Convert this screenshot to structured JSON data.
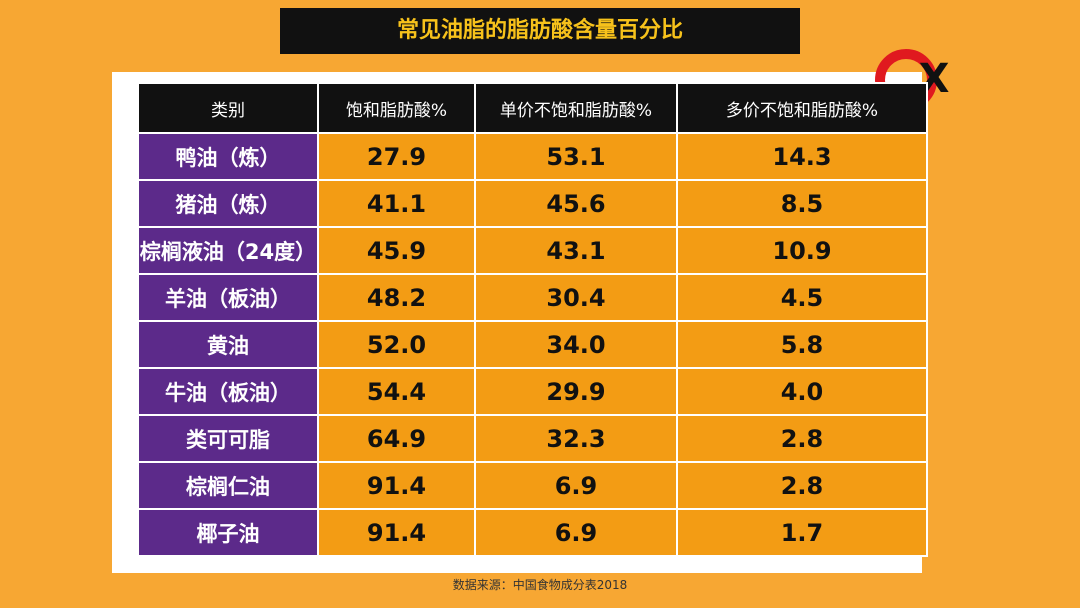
{
  "header": {
    "title": "常见油脂的脂肪酸含量百分比"
  },
  "table": {
    "columns": [
      "类别",
      "饱和脂肪酸%",
      "单价不饱和脂肪酸%",
      "多价不饱和脂肪酸%"
    ],
    "rows": [
      [
        "鸭油（炼）",
        "27.9",
        "53.1",
        "14.3"
      ],
      [
        "猪油（炼）",
        "41.1",
        "45.6",
        "8.5"
      ],
      [
        "棕榈液油（24度）",
        "45.9",
        "43.1",
        "10.9"
      ],
      [
        "羊油（板油）",
        "48.2",
        "30.4",
        "4.5"
      ],
      [
        "黄油",
        "52.0",
        "34.0",
        "5.8"
      ],
      [
        "牛油（板油）",
        "54.4",
        "29.9",
        "4.0"
      ],
      [
        "类可可脂",
        "64.9",
        "32.3",
        "2.8"
      ],
      [
        "棕榈仁油",
        "91.4",
        "6.9",
        "2.8"
      ],
      [
        "椰子油",
        "91.4",
        "6.9",
        "1.7"
      ]
    ]
  },
  "footer": {
    "source": "数据来源：中国食物成分表2018"
  }
}
